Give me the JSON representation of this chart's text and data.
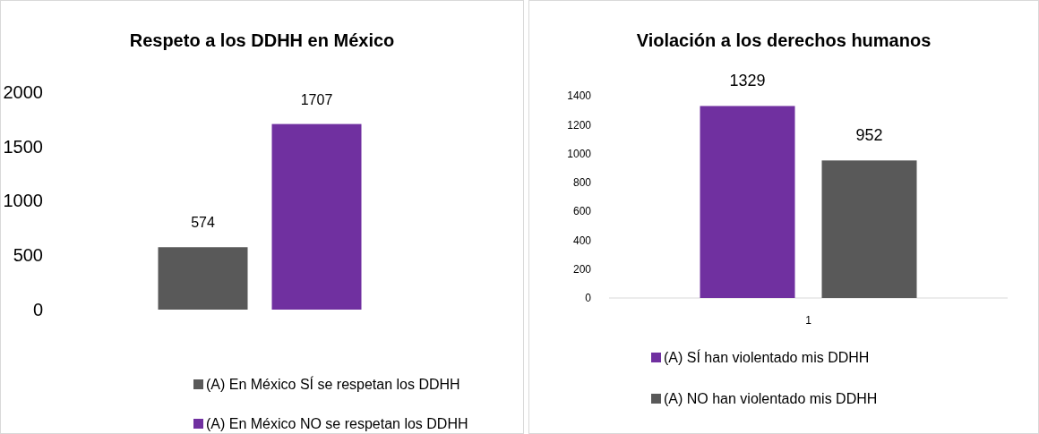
{
  "chart_data": [
    {
      "type": "bar",
      "title": "Respeto a los DDHH en México",
      "categories": [
        null
      ],
      "series": [
        {
          "name": "(A) En México SÍ se respetan los DDHH",
          "color": "#595959",
          "values": [
            574
          ]
        },
        {
          "name": "(A) En México NO se respetan los DDHH",
          "color": "#7030a0",
          "values": [
            1707
          ]
        }
      ],
      "ylim": [
        0,
        2000
      ],
      "yticks": [
        0,
        500,
        1000,
        1500,
        2000
      ],
      "data_labels": true,
      "legend": "bottom",
      "grid": false
    },
    {
      "type": "bar",
      "title": "Violación a los derechos humanos",
      "categories": [
        "1"
      ],
      "series": [
        {
          "name": "(A) SÍ han violentado mis DDHH",
          "color": "#7030a0",
          "values": [
            1329
          ]
        },
        {
          "name": "(A) NO han violentado mis DDHH",
          "color": "#595959",
          "values": [
            952
          ]
        }
      ],
      "ylim": [
        0,
        1400
      ],
      "yticks": [
        0,
        200,
        400,
        600,
        800,
        1000,
        1200,
        1400
      ],
      "data_labels": true,
      "legend": "bottom",
      "grid": false
    }
  ]
}
